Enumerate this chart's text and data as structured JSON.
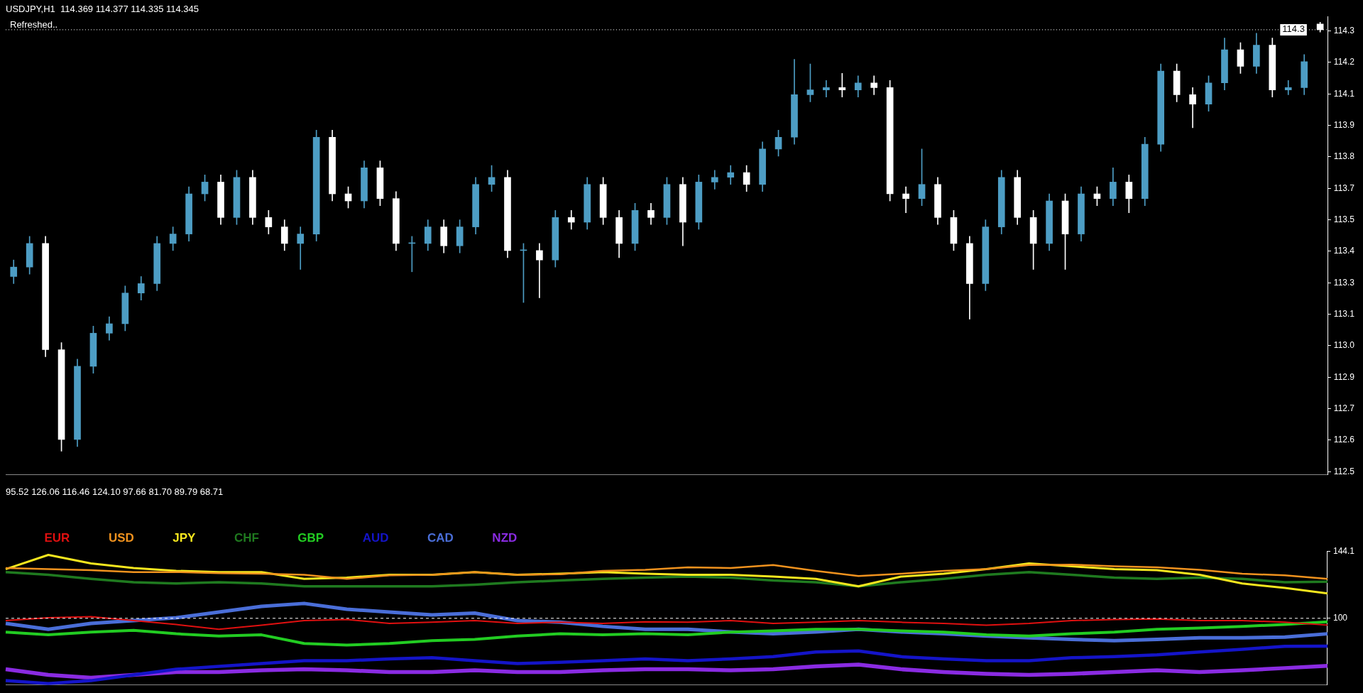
{
  "chart_data": [
    {
      "type": "candlestick",
      "title": "USDJPY,H1  114.369 114.377 114.335 114.345",
      "annotations": [
        "Refreshed.."
      ],
      "ref_lines": [
        {
          "axis": "y",
          "value": 114.345,
          "label": "114.3",
          "color": "#ffffff",
          "line_style": "dotted"
        }
      ],
      "categories": [
        null,
        null,
        null,
        null,
        null,
        null,
        null,
        null,
        null,
        null,
        null,
        null,
        null,
        null,
        null,
        null,
        null,
        null,
        null,
        null,
        null,
        null,
        null,
        null,
        null,
        null,
        null,
        null,
        null,
        null,
        null,
        null,
        null,
        null,
        null,
        null,
        null,
        null,
        null,
        null,
        null,
        null,
        null,
        null,
        null,
        null,
        null,
        null,
        null,
        null,
        null,
        null,
        null,
        null,
        null,
        null,
        null,
        null,
        null,
        null,
        null,
        null,
        null,
        null,
        null,
        null,
        null,
        null,
        null,
        null,
        null,
        null,
        null,
        null,
        null,
        null,
        null,
        null,
        null,
        null,
        null,
        null,
        null
      ],
      "ohlc": [
        [
          113.3,
          113.37,
          113.27,
          113.34
        ],
        [
          113.34,
          113.47,
          113.31,
          113.44
        ],
        [
          113.44,
          113.47,
          112.96,
          112.99
        ],
        [
          112.99,
          113.02,
          112.56,
          112.61
        ],
        [
          112.61,
          112.95,
          112.58,
          112.92
        ],
        [
          112.92,
          113.09,
          112.89,
          113.06
        ],
        [
          113.06,
          113.13,
          113.03,
          113.1
        ],
        [
          113.1,
          113.26,
          113.07,
          113.23
        ],
        [
          113.23,
          113.3,
          113.2,
          113.27
        ],
        [
          113.27,
          113.47,
          113.24,
          113.44
        ],
        [
          113.44,
          113.51,
          113.41,
          113.48
        ],
        [
          113.48,
          113.68,
          113.45,
          113.65
        ],
        [
          113.65,
          113.73,
          113.62,
          113.7
        ],
        [
          113.7,
          113.73,
          113.52,
          113.55
        ],
        [
          113.55,
          113.75,
          113.52,
          113.72
        ],
        [
          113.72,
          113.75,
          113.52,
          113.55
        ],
        [
          113.55,
          113.58,
          113.48,
          113.51
        ],
        [
          113.51,
          113.54,
          113.41,
          113.44
        ],
        [
          113.44,
          113.51,
          113.33,
          113.48
        ],
        [
          113.48,
          113.92,
          113.45,
          113.89
        ],
        [
          113.89,
          113.92,
          113.62,
          113.65
        ],
        [
          113.65,
          113.68,
          113.59,
          113.62
        ],
        [
          113.62,
          113.79,
          113.59,
          113.76
        ],
        [
          113.76,
          113.79,
          113.6,
          113.63
        ],
        [
          113.63,
          113.66,
          113.41,
          113.44
        ],
        [
          113.44,
          113.47,
          113.32,
          113.44
        ],
        [
          113.44,
          113.54,
          113.41,
          113.51
        ],
        [
          113.51,
          113.54,
          113.4,
          113.43
        ],
        [
          113.43,
          113.54,
          113.4,
          113.51
        ],
        [
          113.51,
          113.72,
          113.48,
          113.69
        ],
        [
          113.69,
          113.77,
          113.66,
          113.72
        ],
        [
          113.72,
          113.75,
          113.38,
          113.41
        ],
        [
          113.41,
          113.44,
          113.19,
          113.41
        ],
        [
          113.41,
          113.44,
          113.21,
          113.37
        ],
        [
          113.37,
          113.58,
          113.34,
          113.55
        ],
        [
          113.55,
          113.58,
          113.5,
          113.53
        ],
        [
          113.53,
          113.72,
          113.5,
          113.69
        ],
        [
          113.69,
          113.72,
          113.52,
          113.55
        ],
        [
          113.55,
          113.58,
          113.38,
          113.44
        ],
        [
          113.44,
          113.61,
          113.41,
          113.58
        ],
        [
          113.58,
          113.61,
          113.52,
          113.55
        ],
        [
          113.55,
          113.72,
          113.52,
          113.69
        ],
        [
          113.69,
          113.72,
          113.43,
          113.53
        ],
        [
          113.53,
          113.73,
          113.5,
          113.7
        ],
        [
          113.7,
          113.75,
          113.67,
          113.72
        ],
        [
          113.72,
          113.77,
          113.69,
          113.74
        ],
        [
          113.74,
          113.77,
          113.66,
          113.69
        ],
        [
          113.69,
          113.87,
          113.66,
          113.84
        ],
        [
          113.84,
          113.92,
          113.81,
          113.89
        ],
        [
          113.89,
          114.22,
          113.86,
          114.07
        ],
        [
          114.07,
          114.2,
          114.04,
          114.09
        ],
        [
          114.09,
          114.13,
          114.06,
          114.1
        ],
        [
          114.1,
          114.16,
          114.06,
          114.09
        ],
        [
          114.09,
          114.15,
          114.06,
          114.12
        ],
        [
          114.12,
          114.15,
          114.07,
          114.1
        ],
        [
          114.1,
          114.13,
          113.62,
          113.65
        ],
        [
          113.65,
          113.68,
          113.57,
          113.63
        ],
        [
          113.63,
          113.84,
          113.6,
          113.69
        ],
        [
          113.69,
          113.72,
          113.52,
          113.55
        ],
        [
          113.55,
          113.58,
          113.41,
          113.44
        ],
        [
          113.44,
          113.47,
          113.12,
          113.27
        ],
        [
          113.27,
          113.54,
          113.24,
          113.51
        ],
        [
          113.51,
          113.75,
          113.48,
          113.72
        ],
        [
          113.72,
          113.75,
          113.52,
          113.55
        ],
        [
          113.55,
          113.58,
          113.33,
          113.44
        ],
        [
          113.44,
          113.65,
          113.41,
          113.62
        ],
        [
          113.62,
          113.65,
          113.33,
          113.48
        ],
        [
          113.48,
          113.68,
          113.45,
          113.65
        ],
        [
          113.65,
          113.68,
          113.6,
          113.63
        ],
        [
          113.63,
          113.76,
          113.6,
          113.7
        ],
        [
          113.7,
          113.73,
          113.57,
          113.63
        ],
        [
          113.63,
          113.89,
          113.6,
          113.86
        ],
        [
          113.86,
          114.2,
          113.83,
          114.17
        ],
        [
          114.17,
          114.2,
          114.04,
          114.07
        ],
        [
          114.07,
          114.1,
          113.93,
          114.03
        ],
        [
          114.03,
          114.15,
          114.0,
          114.12
        ],
        [
          114.12,
          114.31,
          114.09,
          114.26
        ],
        [
          114.26,
          114.29,
          114.16,
          114.19
        ],
        [
          114.19,
          114.33,
          114.16,
          114.28
        ],
        [
          114.28,
          114.31,
          114.06,
          114.09
        ],
        [
          114.09,
          114.13,
          114.07,
          114.1
        ],
        [
          114.1,
          114.24,
          114.07,
          114.21
        ],
        [
          114.369,
          114.377,
          114.335,
          114.345
        ]
      ],
      "ylim": [
        112.46,
        114.4
      ],
      "yticks": [
        {
          "value": 114.34,
          "label": "114.3"
        },
        {
          "value": 114.207,
          "label": "114.2"
        },
        {
          "value": 114.073,
          "label": "114.1"
        },
        {
          "value": 113.94,
          "label": "113.9"
        },
        {
          "value": 113.807,
          "label": "113.8"
        },
        {
          "value": 113.673,
          "label": "113.7"
        },
        {
          "value": 113.54,
          "label": "113.5"
        },
        {
          "value": 113.407,
          "label": "113.4"
        },
        {
          "value": 113.273,
          "label": "113.3"
        },
        {
          "value": 113.14,
          "label": "113.1"
        },
        {
          "value": 113.007,
          "label": "113.0"
        },
        {
          "value": 112.873,
          "label": "112.9"
        },
        {
          "value": 112.74,
          "label": "112.7"
        },
        {
          "value": 112.607,
          "label": "112.6"
        },
        {
          "value": 112.473,
          "label": "112.5"
        }
      ],
      "tick_labels": "y"
    },
    {
      "type": "line",
      "title": "95.52 126.06 116.46 124.10 97.66 81.70 89.79 68.71",
      "categories": [
        null,
        null,
        null,
        null,
        null,
        null,
        null,
        null,
        null,
        null,
        null,
        null,
        null,
        null,
        null,
        null,
        null,
        null,
        null,
        null,
        null,
        null,
        null,
        null,
        null,
        null,
        null,
        null,
        null,
        null,
        null,
        null
      ],
      "series": [
        {
          "name": "EUR",
          "color": "#e01010",
          "values": [
            98.5,
            100.4,
            101.1,
            98.5,
            95.9,
            92.8,
            95.5,
            98.5,
            99.2,
            96.6,
            97.4,
            98.5,
            96.6,
            97.4,
            96.6,
            97.7,
            97.4,
            98.5,
            96.6,
            97.4,
            98.5,
            97.4,
            96.6,
            95.5,
            96.6,
            98.5,
            99.2,
            99.6,
            98.5,
            98.5,
            97.4,
            95.52
          ]
        },
        {
          "name": "USD",
          "color": "#f0921e",
          "values": [
            133.2,
            132.4,
            131.7,
            130.5,
            130.5,
            129.8,
            129.4,
            128.7,
            126.0,
            128.3,
            128.7,
            130.5,
            128.7,
            129.1,
            131.3,
            132.0,
            133.6,
            133.2,
            135.1,
            131.3,
            127.9,
            129.4,
            131.3,
            132.4,
            135.1,
            135.4,
            134.3,
            133.6,
            132.0,
            129.4,
            128.3,
            126.06
          ]
        },
        {
          "name": "JPY",
          "color": "#f5e61e",
          "values": [
            132.4,
            141.8,
            136.2,
            133.2,
            131.3,
            130.5,
            130.5,
            126.0,
            126.8,
            128.7,
            128.7,
            130.5,
            128.7,
            129.4,
            130.5,
            129.4,
            128.7,
            128.7,
            127.5,
            126.0,
            121.1,
            127.5,
            129.4,
            132.4,
            136.2,
            134.3,
            132.4,
            131.7,
            128.7,
            123.0,
            120.0,
            116.46
          ]
        },
        {
          "name": "CHF",
          "color": "#1f7a1f",
          "values": [
            130.5,
            128.7,
            126.0,
            123.8,
            123.0,
            123.8,
            123.0,
            121.1,
            121.1,
            121.1,
            121.1,
            122.2,
            123.8,
            124.9,
            126.0,
            126.8,
            127.5,
            126.8,
            124.9,
            123.8,
            121.1,
            123.8,
            126.0,
            128.7,
            130.5,
            128.7,
            126.8,
            126.0,
            126.8,
            126.0,
            123.8,
            124.1
          ]
        },
        {
          "name": "GBP",
          "color": "#22cc22",
          "values": [
            90.9,
            89.1,
            90.9,
            92.1,
            89.8,
            88.3,
            89.1,
            83.4,
            82.3,
            83.4,
            85.3,
            86.1,
            88.3,
            89.8,
            89.1,
            89.8,
            89.1,
            90.9,
            91.7,
            92.8,
            92.8,
            91.7,
            90.9,
            89.1,
            88.3,
            89.8,
            90.9,
            92.8,
            93.6,
            94.7,
            95.9,
            97.66
          ]
        },
        {
          "name": "AUD",
          "color": "#1414c8",
          "values": [
            58.9,
            57.0,
            58.9,
            62.7,
            66.4,
            68.3,
            70.2,
            72.1,
            72.1,
            73.2,
            74.0,
            72.1,
            70.2,
            71.0,
            72.1,
            73.2,
            72.1,
            73.2,
            74.7,
            77.8,
            78.5,
            74.7,
            73.2,
            72.1,
            72.1,
            74.0,
            74.7,
            75.9,
            77.8,
            79.6,
            81.5,
            81.7
          ]
        },
        {
          "name": "CAD",
          "color": "#4a6ed8",
          "values": [
            96.6,
            92.8,
            96.6,
            98.5,
            100.4,
            104.1,
            107.9,
            109.8,
            106.0,
            104.1,
            102.3,
            103.4,
            98.5,
            97.4,
            94.7,
            92.8,
            92.8,
            91.0,
            89.8,
            91.0,
            92.8,
            91.0,
            89.8,
            88.3,
            87.2,
            86.1,
            85.3,
            86.1,
            87.2,
            87.2,
            87.6,
            89.79
          ]
        },
        {
          "name": "NZD",
          "color": "#8a2be2",
          "values": [
            66.4,
            62.7,
            60.8,
            62.7,
            64.6,
            64.6,
            65.7,
            66.4,
            65.7,
            64.6,
            64.6,
            65.7,
            64.6,
            64.6,
            65.7,
            66.4,
            66.4,
            65.7,
            66.4,
            68.3,
            69.5,
            66.4,
            64.6,
            63.4,
            62.7,
            63.4,
            64.6,
            65.7,
            64.6,
            65.7,
            67.2,
            68.71
          ]
        }
      ],
      "ylim": [
        56,
        144.1
      ],
      "yticks": [
        144.1,
        100
      ],
      "ref_lines": [
        {
          "axis": "y",
          "value": 100,
          "color": "#ffffff",
          "line_style": "dashed"
        }
      ],
      "legend": "top left",
      "marker": "none",
      "tick_labels": "y"
    }
  ]
}
